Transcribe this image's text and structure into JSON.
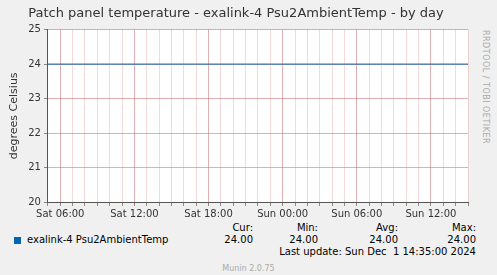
{
  "chart_data": {
    "type": "line",
    "title": "Patch panel temperature - exalink-4 Psu2AmbientTemp - by day",
    "y_label": "degrees Celsius",
    "categories": [
      null,
      "Sat 06:00",
      null,
      null,
      null,
      null,
      null,
      "Sat 12:00",
      null,
      null,
      null,
      null,
      null,
      "Sat 18:00",
      null,
      null,
      null,
      null,
      null,
      "Sun 00:00",
      null,
      null,
      null,
      null,
      null,
      "Sun 06:00",
      null,
      null,
      null,
      null,
      null,
      "Sun 12:00",
      null,
      null,
      null
    ],
    "series": [
      {
        "name": "exalink-4 Psu2AmbientTemp",
        "color": "#0066b3",
        "values": [
          24,
          24,
          24,
          24,
          24,
          24,
          24,
          24,
          24,
          24,
          24,
          24,
          24,
          24,
          24,
          24,
          24,
          24,
          24,
          24,
          24,
          24,
          24,
          24,
          24,
          24,
          24,
          24,
          24,
          24,
          24,
          24,
          24,
          24,
          24
        ],
        "stats": {
          "labels": [
            "Cur:",
            "Min:",
            "Avg:",
            "Max:"
          ],
          "values": [
            24,
            24,
            24,
            24
          ],
          "value_labels": [
            "24.00",
            "24.00",
            "24.00",
            "24.00"
          ]
        }
      }
    ],
    "ylim": [
      20,
      25
    ],
    "yticks": [
      20,
      21,
      22,
      23,
      24,
      25
    ],
    "grid": true,
    "last_update": "Last update: Sun Dec  1 14:35:00 2024",
    "footer": "Munin 2.0.75",
    "side_text": "RRDTOOL / TOBI OETIKER"
  }
}
